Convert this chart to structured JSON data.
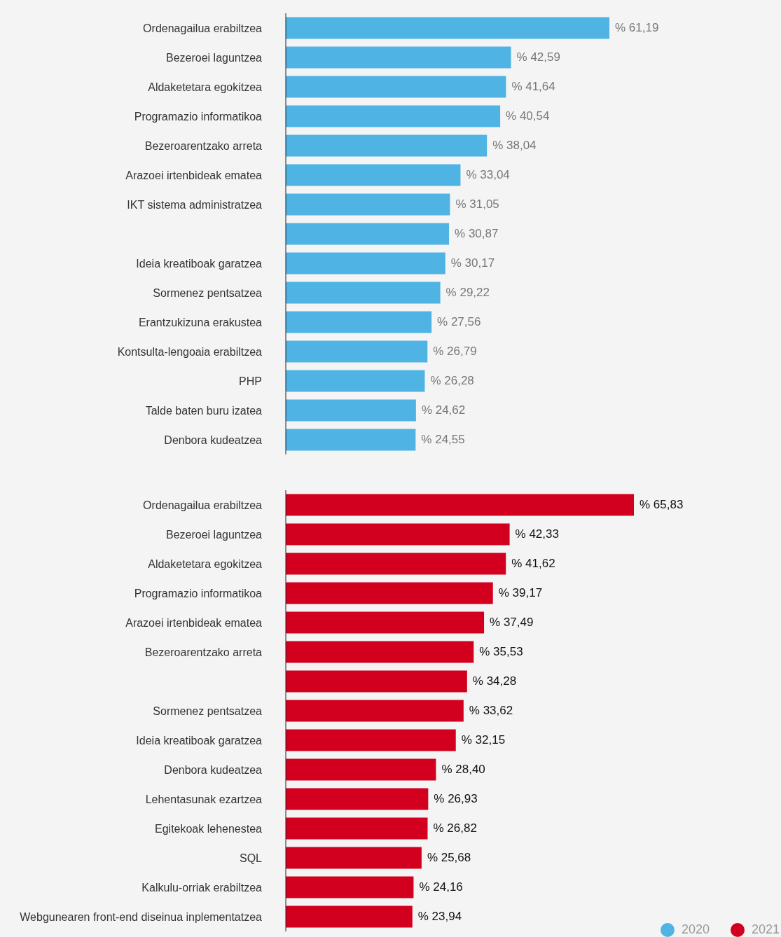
{
  "chart_data": [
    {
      "type": "bar",
      "orientation": "horizontal",
      "categories": [
        "Ordenagailua erabiltzea",
        "Bezeroei laguntzea",
        "Aldaketetara egokitzea",
        "Programazio informatikoa",
        "Bezeroarentzako arreta",
        "Arazoei irtenbideak ematea",
        "IKT sistema administratzea",
        null,
        "Ideia kreatiboak garatzea",
        "Sormenez pentsatzea",
        "Erantzukizuna erakustea",
        "Kontsulta-lengoaia erabiltzea",
        "PHP",
        "Talde baten buru izatea",
        "Denbora kudeatzea"
      ],
      "series": [
        {
          "name": "2020",
          "color": "#4fb3e3",
          "values": [
            61.19,
            42.59,
            41.64,
            40.54,
            38.04,
            33.04,
            31.05,
            30.87,
            30.17,
            29.22,
            27.56,
            26.79,
            26.28,
            24.62,
            24.55
          ],
          "value_labels": [
            "% 61,19",
            "% 42,59",
            "% 41,64",
            "% 40,54",
            "% 38,04",
            "% 33,04",
            "% 31,05",
            "% 30,87",
            "% 30,17",
            "% 29,22",
            "% 27,56",
            "% 26,79",
            "% 26,28",
            "% 24,62",
            "% 24,55"
          ]
        }
      ],
      "tick_labels": "y",
      "legend": "bottom right"
    },
    {
      "type": "bar",
      "orientation": "horizontal",
      "categories": [
        "Ordenagailua erabiltzea",
        "Bezeroei laguntzea",
        "Aldaketetara egokitzea",
        "Programazio informatikoa",
        "Arazoei irtenbideak ematea",
        "Bezeroarentzako arreta",
        null,
        "Sormenez pentsatzea",
        "Ideia kreatiboak garatzea",
        "Denbora kudeatzea",
        "Lehentasunak ezartzea",
        "Egitekoak lehenestea",
        "SQL",
        "Kalkulu-orriak erabiltzea",
        "Webgunearen front-end diseinua inplementatzea"
      ],
      "series": [
        {
          "name": "2021",
          "color": "#d2001e",
          "values": [
            65.83,
            42.33,
            41.62,
            39.17,
            37.49,
            35.53,
            34.28,
            33.62,
            32.15,
            28.4,
            26.93,
            26.82,
            25.68,
            24.16,
            23.94
          ],
          "value_labels": [
            "% 65,83",
            "% 42,33",
            "% 41,62",
            "% 39,17",
            "% 37,49",
            "% 35,53",
            "% 34,28",
            "% 33,62",
            "% 32,15",
            "% 28,40",
            "% 26,93",
            "% 26,82",
            "% 25,68",
            "% 24,16",
            "% 23,94"
          ]
        }
      ],
      "tick_labels": "y",
      "legend": "bottom right"
    }
  ]
}
